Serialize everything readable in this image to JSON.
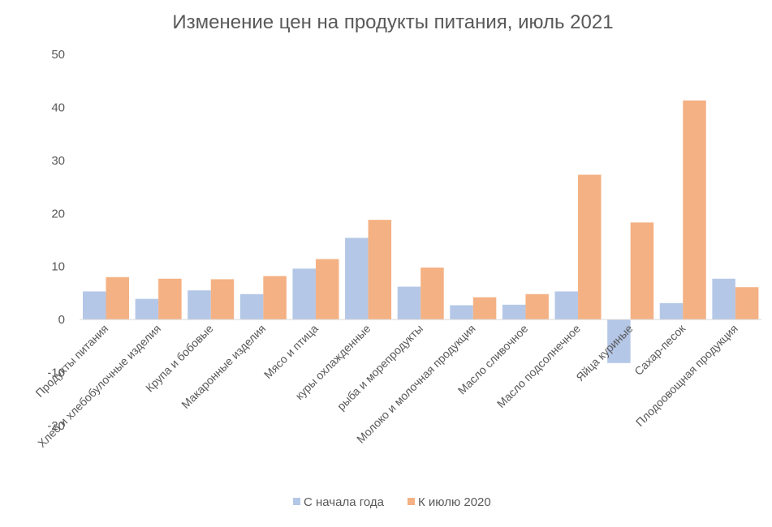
{
  "chart_data": {
    "type": "bar",
    "title": "Изменение цен на продукты питания, июль 2021",
    "xlabel": "",
    "ylabel": "",
    "ylim": [
      -20,
      50
    ],
    "yticks": [
      50,
      40,
      30,
      20,
      10,
      0,
      -10,
      -20
    ],
    "ytick_labels": [
      "50",
      "40",
      "30",
      "20",
      "10",
      "0",
      "-10",
      "-20"
    ],
    "grid": false,
    "legend": "bottom",
    "categories": [
      "Продукты питания",
      "Хлеб и хлебобулочные изделия",
      "Крупа и бобовые",
      "Макаронные изделия",
      "Мясо и птица",
      "куры охлажденные",
      "рыба и морепродукты",
      "Молоко и молочная продукция",
      "Масло сливочное",
      "Масло подсолнечное",
      "Яйца куриные",
      "Сахар-песок",
      "Плодоовощная продукция"
    ],
    "series": [
      {
        "name": "С начала года",
        "color": "#b4c7e7",
        "values": [
          5.3,
          3.9,
          5.5,
          4.8,
          9.6,
          15.4,
          6.2,
          2.7,
          2.8,
          5.3,
          -8.2,
          3.1,
          7.7
        ]
      },
      {
        "name": "К июлю 2020",
        "color": "#f4b183",
        "values": [
          8.0,
          7.7,
          7.6,
          8.2,
          11.4,
          18.8,
          9.8,
          4.2,
          4.8,
          27.3,
          18.3,
          41.3,
          6.1
        ]
      }
    ]
  }
}
